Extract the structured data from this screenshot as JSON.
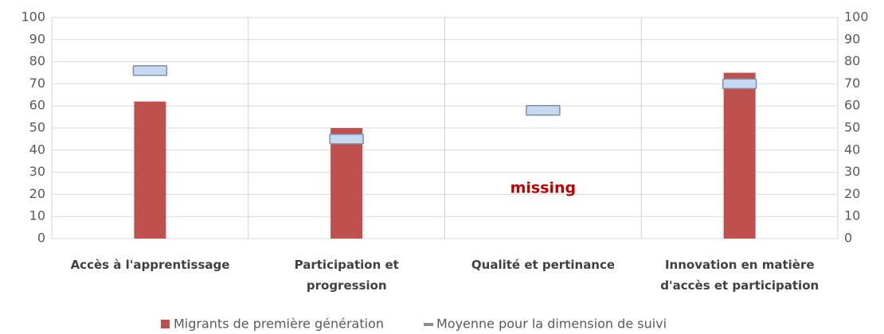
{
  "chart_data": {
    "type": "bar",
    "categories": [
      "Accès à l'apprentissage",
      "Participation et\nprogression",
      "Qualité et pertinance",
      "Innovation en matière\nd'accès et participation"
    ],
    "series": [
      {
        "name": "Migrants de première génération",
        "color": "#c0504d",
        "values": [
          62,
          50,
          null,
          75
        ]
      },
      {
        "name": "Moyenne pour la dimension de suivi",
        "color": "#c6d9f1",
        "values": [
          76,
          45,
          58,
          70
        ],
        "marker": "dash"
      }
    ],
    "annotations": [
      {
        "text": "missing",
        "category": 2,
        "color": "#c00000"
      }
    ],
    "ylim": [
      0,
      100
    ],
    "yticks": [
      0,
      10,
      20,
      30,
      40,
      50,
      60,
      70,
      80,
      90,
      100
    ],
    "y2lim": [
      0,
      100
    ],
    "y2ticks": [
      0,
      10,
      20,
      30,
      40,
      50,
      60,
      70,
      80,
      90,
      100
    ],
    "grid": true,
    "legend": "bottom"
  }
}
